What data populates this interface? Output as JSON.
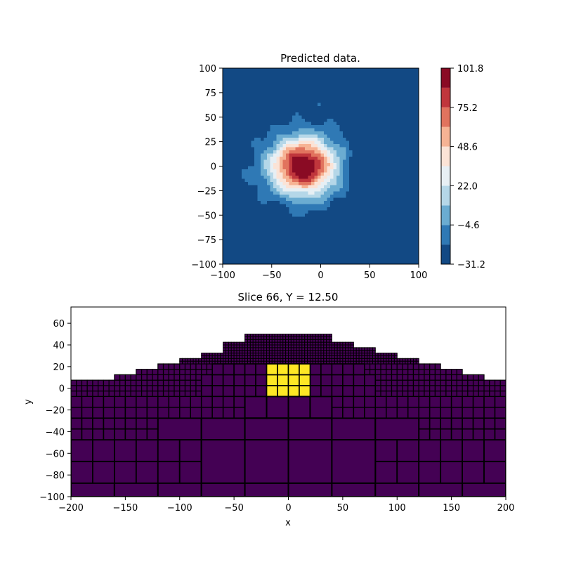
{
  "chart_data": [
    {
      "type": "heatmap",
      "title": "Predicted data.",
      "xlabel": "",
      "ylabel": "",
      "xlim": [
        -100,
        100
      ],
      "ylim": [
        -100,
        100
      ],
      "x_ticks": [
        "−100",
        "−50",
        "0",
        "50",
        "100"
      ],
      "x_tick_values": [
        -100,
        -50,
        0,
        50,
        100
      ],
      "y_ticks": [
        "100",
        "75",
        "50",
        "25",
        "0",
        "−25",
        "−50",
        "−75",
        "−100"
      ],
      "y_tick_values": [
        100,
        75,
        50,
        25,
        0,
        -25,
        -50,
        -75,
        -100
      ],
      "colormap": "RdBu_r",
      "peak": {
        "x": -18,
        "y": 0,
        "value": 101.8
      },
      "trough": {
        "x": 60,
        "y": 5,
        "value": -31.2
      },
      "colorbar": {
        "levels": [
          -31.2,
          -17.9,
          -4.6,
          8.7,
          22.0,
          35.3,
          48.6,
          61.9,
          75.2,
          88.5,
          101.8
        ],
        "colors": [
          "#124984",
          "#2f79b5",
          "#6bacd1",
          "#b5d7e8",
          "#e7eff4",
          "#fbe3d6",
          "#f6b394",
          "#e1735e",
          "#c0363c",
          "#8a0b24"
        ],
        "tick_labels": [
          "101.8",
          "75.2",
          "48.6",
          "22.0",
          "−4.6",
          "−31.2"
        ],
        "tick_values": [
          101.8,
          75.2,
          48.6,
          22.0,
          -4.6,
          -31.2
        ]
      }
    },
    {
      "type": "heatmap",
      "title": "Slice 66, Y = 12.50",
      "xlabel": "x",
      "ylabel": "y",
      "xlim": [
        -200,
        200
      ],
      "ylim": [
        -100,
        75
      ],
      "x_ticks": [
        "−200",
        "−150",
        "−100",
        "−50",
        "0",
        "50",
        "100",
        "150",
        "200"
      ],
      "x_tick_values": [
        -200,
        -150,
        -100,
        -50,
        0,
        50,
        100,
        150,
        200
      ],
      "y_ticks": [
        "60",
        "40",
        "20",
        "0",
        "−20",
        "−40",
        "−60",
        "−80",
        "−100"
      ],
      "y_tick_values": [
        60,
        40,
        20,
        0,
        -20,
        -40,
        -60,
        -80,
        -100
      ],
      "background_color": "#440154",
      "anomaly_color": "#fde725",
      "grid_line_color": "#000000",
      "anomaly_block": {
        "x": [
          -20,
          20
        ],
        "y": [
          -7.5,
          22.5
        ]
      }
    }
  ]
}
